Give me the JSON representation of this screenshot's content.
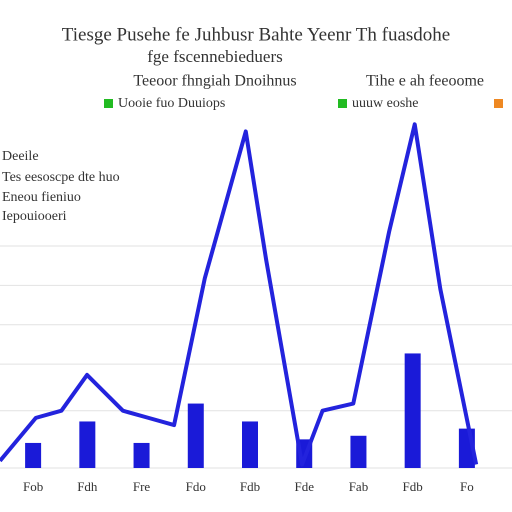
{
  "chart_data": {
    "type": "bar",
    "title": "Tiesge Pusehe fe Juhbusr Bahte Yeenr Th fuasdohe",
    "subtitle": "fge fscennebieduers",
    "subtitle_left": "Teeoor fhngiah Dnoihnus",
    "subtitle_right": "Tihe e ah feeoome",
    "annotation": [
      "Deeile",
      "Tes eesoscpe dte huo",
      "Eneou fieniuo",
      "Iepouiooeri"
    ],
    "legend": [
      {
        "name": "Uooie fuo Duuiops",
        "color": "#22bb22"
      },
      {
        "name": "uuuw eoshe",
        "color": "#22bb22"
      },
      {
        "name": "",
        "color": "#ee8822"
      }
    ],
    "categories": [
      "Fob",
      "Fdh",
      "Fre",
      "Fdo",
      "Fdb",
      "Fde",
      "Fab",
      "Fdb",
      "Fo"
    ],
    "values": [
      7,
      13,
      7,
      18,
      13,
      8,
      9,
      32,
      11
    ],
    "color": "#1a1ad8",
    "line": {
      "color": "#2323dd",
      "x": [
        0,
        7,
        12,
        17,
        24,
        29,
        34,
        40,
        48,
        52,
        59,
        63,
        69,
        76,
        81,
        86,
        93
      ],
      "values": [
        2,
        14,
        16,
        26,
        16,
        14,
        12,
        53,
        94,
        58,
        1,
        16,
        18,
        66,
        96,
        50,
        1
      ]
    },
    "xlim": [
      0,
      100
    ],
    "ylim": [
      0,
      100
    ],
    "yticks": [
      0,
      16,
      29,
      40,
      51,
      62
    ],
    "grid": true
  }
}
